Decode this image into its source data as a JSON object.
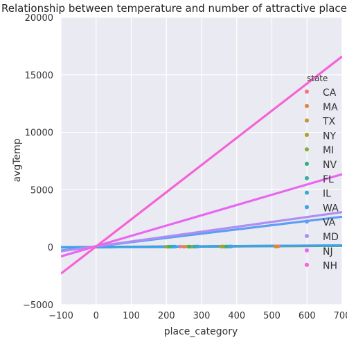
{
  "chart_data": {
    "type": "scatter",
    "title": "Relationship between temperature and number of attractive places i",
    "xlabel": "place_category",
    "ylabel": "avgTemp",
    "xlim": [
      -100,
      700
    ],
    "ylim": [
      -5000,
      20000
    ],
    "xticks": [
      -100,
      0,
      100,
      200,
      300,
      400,
      500,
      600,
      700
    ],
    "yticks": [
      -5000,
      0,
      5000,
      10000,
      15000,
      20000
    ],
    "xtick_labels": [
      "−100",
      "0",
      "100",
      "200",
      "300",
      "400",
      "500",
      "600",
      "700"
    ],
    "ytick_labels": [
      "−5000",
      "0",
      "5000",
      "10000",
      "15000",
      "20000"
    ],
    "grid": true,
    "background": "#eaeaf2",
    "legend": {
      "title": "state",
      "position": "right"
    },
    "series": [
      {
        "name": "CA",
        "color": "#f77189",
        "line": [
          [
            -100,
            5
          ],
          [
            700,
            150
          ]
        ],
        "points": [
          [
            240,
            60
          ],
          [
            360,
            70
          ],
          [
            520,
            85
          ]
        ]
      },
      {
        "name": "MA",
        "color": "#e7823e",
        "line": [
          [
            -100,
            -10
          ],
          [
            700,
            110
          ]
        ],
        "points": [
          [
            250,
            40
          ],
          [
            370,
            55
          ],
          [
            510,
            65
          ]
        ]
      },
      {
        "name": "TX",
        "color": "#c39632",
        "line": [
          [
            -100,
            0
          ],
          [
            700,
            130
          ]
        ],
        "points": [
          [
            260,
            55
          ],
          [
            355,
            60
          ],
          [
            515,
            70
          ]
        ]
      },
      {
        "name": "NY",
        "color": "#a9a230",
        "line": [
          [
            -100,
            -5
          ],
          [
            700,
            120
          ]
        ],
        "points": [
          [
            200,
            40
          ],
          [
            270,
            45
          ],
          [
            365,
            55
          ]
        ]
      },
      {
        "name": "MI",
        "color": "#85ad32",
        "line": [
          [
            -100,
            -8
          ],
          [
            700,
            125
          ]
        ],
        "points": [
          [
            205,
            50
          ],
          [
            275,
            55
          ],
          [
            360,
            60
          ]
        ]
      },
      {
        "name": "NV",
        "color": "#33b07a",
        "line": [
          [
            -100,
            -10
          ],
          [
            700,
            140
          ]
        ],
        "points": [
          [
            210,
            45
          ],
          [
            265,
            50
          ],
          [
            370,
            60
          ]
        ]
      },
      {
        "name": "FL",
        "color": "#35aca4",
        "line": [
          [
            -100,
            -12
          ],
          [
            700,
            135
          ]
        ],
        "points": [
          [
            215,
            50
          ],
          [
            280,
            55
          ],
          [
            375,
            60
          ]
        ]
      },
      {
        "name": "IL",
        "color": "#38a9c5",
        "line": [
          [
            -100,
            -15
          ],
          [
            700,
            145
          ]
        ],
        "points": [
          [
            220,
            55
          ],
          [
            285,
            60
          ],
          [
            380,
            65
          ]
        ]
      },
      {
        "name": "WA",
        "color": "#3ba3ec",
        "line": [
          [
            -100,
            -20
          ],
          [
            700,
            160
          ]
        ],
        "points": [
          [
            225,
            55
          ],
          [
            290,
            60
          ],
          [
            385,
            70
          ]
        ]
      },
      {
        "name": "VA",
        "color": "#5d9ef2",
        "line": [
          [
            -100,
            -300
          ],
          [
            700,
            2650
          ]
        ],
        "points": []
      },
      {
        "name": "MD",
        "color": "#ae8ef4",
        "line": [
          [
            -100,
            -350
          ],
          [
            700,
            3050
          ]
        ],
        "points": []
      },
      {
        "name": "NJ",
        "color": "#e867f1",
        "line": [
          [
            -100,
            -800
          ],
          [
            700,
            6350
          ]
        ],
        "points": []
      },
      {
        "name": "NH",
        "color": "#f464d6",
        "line": [
          [
            -100,
            -2300
          ],
          [
            700,
            16600
          ]
        ],
        "points": []
      }
    ]
  }
}
